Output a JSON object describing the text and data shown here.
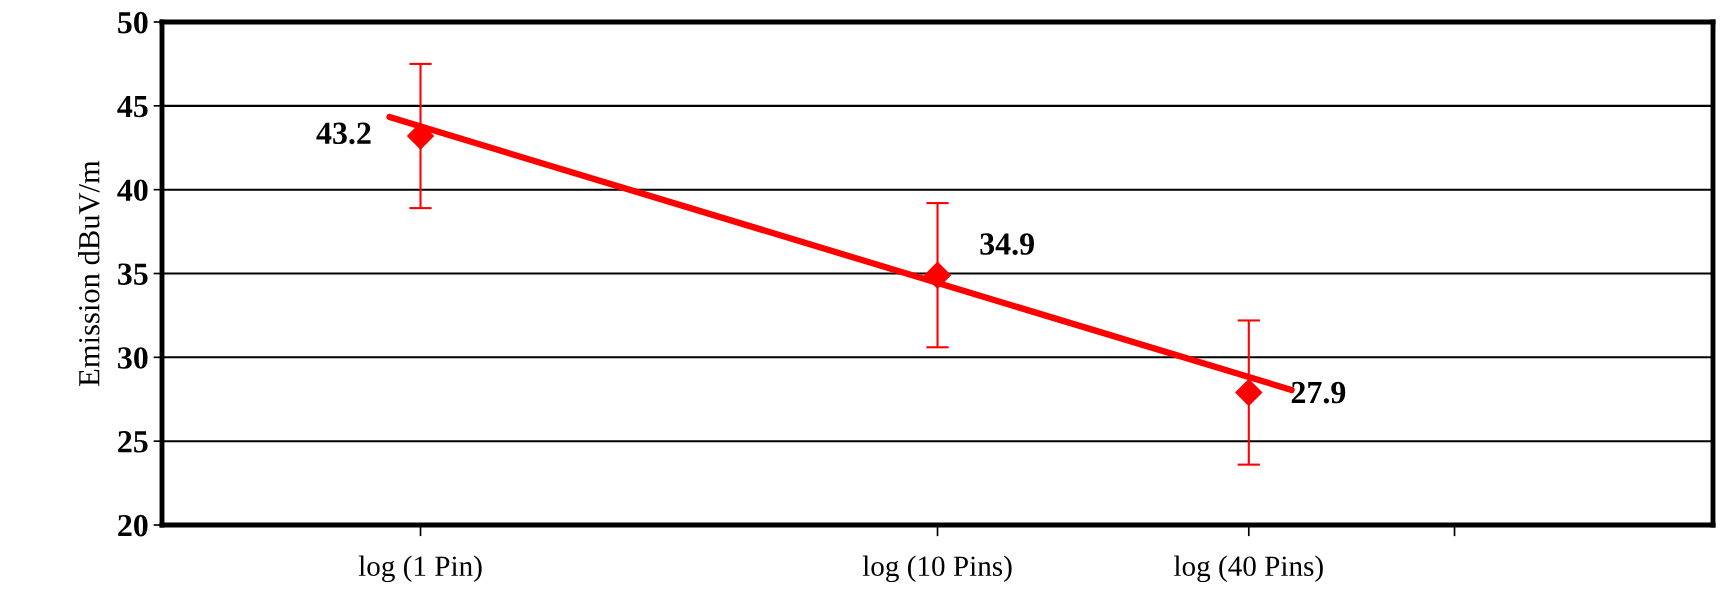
{
  "chart_data": {
    "type": "scatter",
    "ylabel": "Emission dBuV/m",
    "log": "x",
    "xlim": [
      0.3162,
      316.2
    ],
    "xticks": [
      {
        "value": 1,
        "label": "log (1 Pin)"
      },
      {
        "value": 10,
        "label": "log (10 Pins)"
      },
      {
        "value": 40,
        "label": "log (40 Pins)"
      },
      {
        "value": 100,
        "label": null
      }
    ],
    "ylim": [
      20,
      50
    ],
    "yticks": [
      20,
      25,
      30,
      35,
      40,
      45,
      50
    ],
    "grid": "y",
    "legend": false,
    "series": [
      {
        "color": "#ff0000",
        "marker": "diamond",
        "x": [
          1,
          10,
          40
        ],
        "values": [
          43.2,
          34.9,
          27.9
        ],
        "errors": [
          4.3,
          4.3,
          4.3
        ],
        "value_labels": [
          "43.2",
          "34.9",
          "27.9"
        ]
      },
      {
        "type": "line",
        "color": "#ff0000",
        "marker": "none",
        "line_style": "solid",
        "x": [
          0.871,
          48.4
        ],
        "values": [
          44.33,
          28.05
        ]
      }
    ]
  }
}
